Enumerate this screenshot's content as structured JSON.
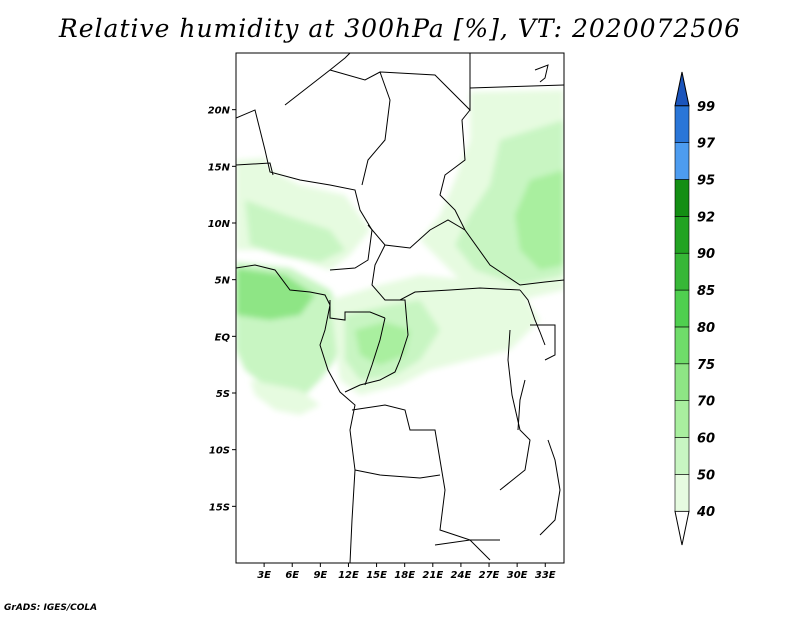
{
  "title": "Relative humidity at 300hPa [%], VT: 2020072506",
  "credit": "GrADS: IGES/COLA",
  "map": {
    "lon_range": [
      0,
      35
    ],
    "lat_range": [
      -20,
      25
    ],
    "lat_ticks": [
      "20N",
      "15N",
      "10N",
      "5N",
      "EQ",
      "5S",
      "10S",
      "15S"
    ],
    "lon_ticks": [
      "3E",
      "6E",
      "9E",
      "12E",
      "15E",
      "18E",
      "21E",
      "24E",
      "27E",
      "30E",
      "33E"
    ],
    "field_colors": {
      "40": "#e6fbe0",
      "50": "#c8f5c2",
      "60": "#a9ef9f",
      "70": "#8ee585",
      "75": "#6fdc6a",
      "80": "#4fcf4f"
    }
  },
  "colorbar": {
    "labels": [
      "40",
      "50",
      "60",
      "70",
      "75",
      "80",
      "85",
      "90",
      "92",
      "95",
      "97",
      "99"
    ],
    "colors": [
      "#ffffff",
      "#e6fbe0",
      "#c8f5c2",
      "#a9ef9f",
      "#8ee585",
      "#6fdc6a",
      "#4fcf4f",
      "#37b737",
      "#22a322",
      "#138e13",
      "#4d9cf0",
      "#2a76d8",
      "#1b55bc"
    ]
  }
}
